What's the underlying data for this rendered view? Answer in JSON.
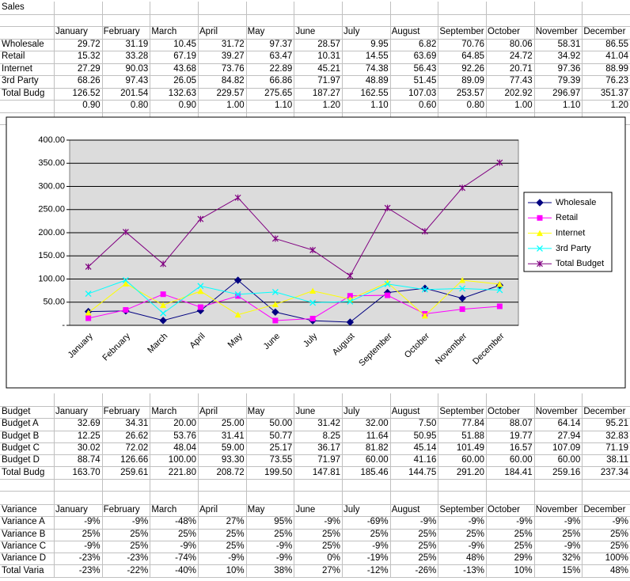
{
  "sales": {
    "title": "Sales",
    "columns": [
      "January",
      "February",
      "March",
      "April",
      "May",
      "June",
      "July",
      "August",
      "September",
      "October",
      "November",
      "December"
    ],
    "rows": [
      [
        "Wholesale",
        "29.72",
        "31.19",
        "10.45",
        "31.72",
        "97.37",
        "28.57",
        "9.95",
        "6.82",
        "70.76",
        "80.06",
        "58.31",
        "86.55"
      ],
      [
        "Retail",
        "15.32",
        "33.28",
        "67.19",
        "39.27",
        "63.47",
        "10.31",
        "14.55",
        "63.69",
        "64.85",
        "24.72",
        "34.92",
        "41.04"
      ],
      [
        "Internet",
        "27.29",
        "90.03",
        "43.68",
        "73.76",
        "22.89",
        "45.21",
        "74.38",
        "56.43",
        "92.26",
        "20.71",
        "97.36",
        "88.99"
      ],
      [
        "3rd Party",
        "68.26",
        "97.43",
        "26.05",
        "84.82",
        "66.86",
        "71.97",
        "48.89",
        "51.45",
        "89.09",
        "77.43",
        "79.39",
        "76.23"
      ],
      [
        "Total Budg",
        "126.52",
        "201.54",
        "132.63",
        "229.57",
        "275.65",
        "187.27",
        "162.55",
        "107.03",
        "253.57",
        "202.92",
        "296.97",
        "351.37"
      ]
    ],
    "factors": [
      "0.90",
      "0.80",
      "0.90",
      "1.00",
      "1.10",
      "1.20",
      "1.10",
      "0.60",
      "0.80",
      "1.00",
      "1.10",
      "1.20"
    ]
  },
  "chart_data": {
    "type": "line",
    "categories": [
      "January",
      "February",
      "March",
      "April",
      "May",
      "June",
      "July",
      "August",
      "September",
      "October",
      "November",
      "December"
    ],
    "ylim": [
      0,
      400
    ],
    "yticks": [
      {
        "value": 0,
        "label": "-"
      },
      {
        "value": 50,
        "label": "50.00"
      },
      {
        "value": 100,
        "label": "100.00"
      },
      {
        "value": 150,
        "label": "150.00"
      },
      {
        "value": 200,
        "label": "200.00"
      },
      {
        "value": 250,
        "label": "250.00"
      },
      {
        "value": 300,
        "label": "300.00"
      },
      {
        "value": 350,
        "label": "350.00"
      },
      {
        "value": 400,
        "label": "400.00"
      }
    ],
    "grid": true,
    "legend": "right",
    "series": [
      {
        "name": "Wholesale",
        "color": "#000080",
        "marker": "diamond",
        "values": [
          29.72,
          31.19,
          10.45,
          31.72,
          97.37,
          28.57,
          9.95,
          6.82,
          70.76,
          80.06,
          58.31,
          86.55
        ]
      },
      {
        "name": "Retail",
        "color": "#ff00ff",
        "marker": "square",
        "values": [
          15.32,
          33.28,
          67.19,
          39.27,
          63.47,
          10.31,
          14.55,
          63.69,
          64.85,
          24.72,
          34.92,
          41.04
        ]
      },
      {
        "name": "Internet",
        "color": "#ffff00",
        "marker": "triangle",
        "values": [
          27.29,
          90.03,
          43.68,
          73.76,
          22.89,
          45.21,
          74.38,
          56.43,
          92.26,
          20.71,
          97.36,
          88.99
        ]
      },
      {
        "name": "3rd Party",
        "color": "#00ffff",
        "marker": "x",
        "values": [
          68.26,
          97.43,
          26.05,
          84.82,
          66.86,
          71.97,
          48.89,
          51.45,
          89.09,
          77.43,
          79.39,
          76.23
        ]
      },
      {
        "name": "Total Budget",
        "color": "#800080",
        "marker": "star",
        "values": [
          126.52,
          201.54,
          132.63,
          229.57,
          275.65,
          187.27,
          162.55,
          107.03,
          253.57,
          202.92,
          296.97,
          351.37
        ]
      }
    ]
  },
  "budget": {
    "header": [
      "Budget",
      "January",
      "February",
      "March",
      "April",
      "May",
      "June",
      "July",
      "August",
      "September",
      "October",
      "November",
      "December"
    ],
    "rows": [
      [
        "Budget A",
        "32.69",
        "34.31",
        "20.00",
        "25.00",
        "50.00",
        "31.42",
        "32.00",
        "7.50",
        "77.84",
        "88.07",
        "64.14",
        "95.21"
      ],
      [
        "Budget B",
        "12.25",
        "26.62",
        "53.76",
        "31.41",
        "50.77",
        "8.25",
        "11.64",
        "50.95",
        "51.88",
        "19.77",
        "27.94",
        "32.83"
      ],
      [
        "Budget C",
        "30.02",
        "72.02",
        "48.04",
        "59.00",
        "25.17",
        "36.17",
        "81.82",
        "45.14",
        "101.49",
        "16.57",
        "107.09",
        "71.19"
      ],
      [
        "Budget D",
        "88.74",
        "126.66",
        "100.00",
        "93.30",
        "73.55",
        "71.97",
        "60.00",
        "41.16",
        "60.00",
        "60.00",
        "60.00",
        "38.11"
      ],
      [
        "Total Budg",
        "163.70",
        "259.61",
        "221.80",
        "208.72",
        "199.50",
        "147.81",
        "185.46",
        "144.75",
        "291.20",
        "184.41",
        "259.16",
        "237.34"
      ]
    ]
  },
  "variance": {
    "header": [
      "Variance",
      "January",
      "February",
      "March",
      "April",
      "May",
      "June",
      "July",
      "August",
      "September",
      "October",
      "November",
      "December"
    ],
    "rows": [
      [
        "Variance A",
        "-9%",
        "-9%",
        "-48%",
        "27%",
        "95%",
        "-9%",
        "-69%",
        "-9%",
        "-9%",
        "-9%",
        "-9%",
        "-9%"
      ],
      [
        "Variance B",
        "25%",
        "25%",
        "25%",
        "25%",
        "25%",
        "25%",
        "25%",
        "25%",
        "25%",
        "25%",
        "25%",
        "25%"
      ],
      [
        "Variance C",
        "-9%",
        "25%",
        "-9%",
        "25%",
        "-9%",
        "25%",
        "-9%",
        "25%",
        "-9%",
        "25%",
        "-9%",
        "25%"
      ],
      [
        "Variance D",
        "-23%",
        "-23%",
        "-74%",
        "-9%",
        "-9%",
        "0%",
        "-19%",
        "25%",
        "48%",
        "29%",
        "32%",
        "100%"
      ],
      [
        "Total Varia",
        "-23%",
        "-22%",
        "-40%",
        "10%",
        "38%",
        "27%",
        "-12%",
        "-26%",
        "-13%",
        "10%",
        "15%",
        "48%"
      ]
    ]
  }
}
